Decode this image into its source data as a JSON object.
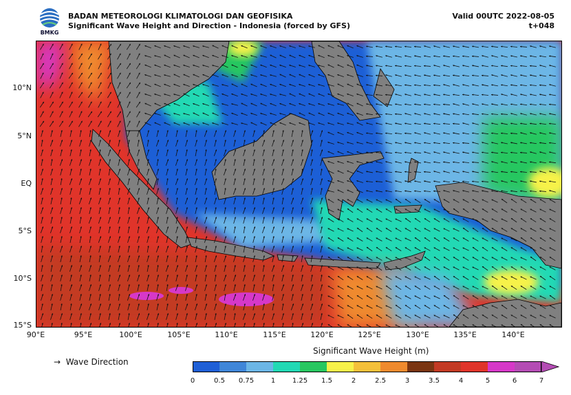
{
  "header": {
    "agency": "BADAN METEOROLOGI KLIMATOLOGI DAN GEOFISIKA",
    "subtitle": "Significant Wave Height and Direction - Indonesia (forced by GFS)",
    "valid": "Valid 00UTC 2022-08-05",
    "lead_time": "t+048",
    "logo_text": "BMKG"
  },
  "axes": {
    "lat_labels": [
      "10°N",
      "5°N",
      "EQ",
      "5°S",
      "10°S",
      "15°S"
    ],
    "lon_labels": [
      "90°E",
      "95°E",
      "100°E",
      "105°E",
      "110°E",
      "115°E",
      "120°E",
      "125°E",
      "130°E",
      "135°E",
      "140°E"
    ],
    "lon_range": [
      90,
      145
    ],
    "lat_range": [
      -15,
      15
    ]
  },
  "legend": {
    "direction_symbol": "→",
    "direction_label": "Wave Direction",
    "colorbar_title": "Significant Wave Height (m)",
    "ticks": [
      "0",
      "0.5",
      "0.75",
      "1",
      "1.25",
      "1.5",
      "2",
      "2.5",
      "3",
      "3.5",
      "4",
      "5",
      "6",
      "7"
    ],
    "colors": [
      "#1f5fd6",
      "#3f86d8",
      "#6cb6e6",
      "#22d9b4",
      "#28c760",
      "#f7f24a",
      "#f4c03a",
      "#ef8a2e",
      "#7a3512",
      "#c33a24",
      "#e0342a",
      "#d638c8",
      "#b44cb4"
    ]
  },
  "colors": {
    "land": "#808080",
    "coast": "#000000"
  }
}
